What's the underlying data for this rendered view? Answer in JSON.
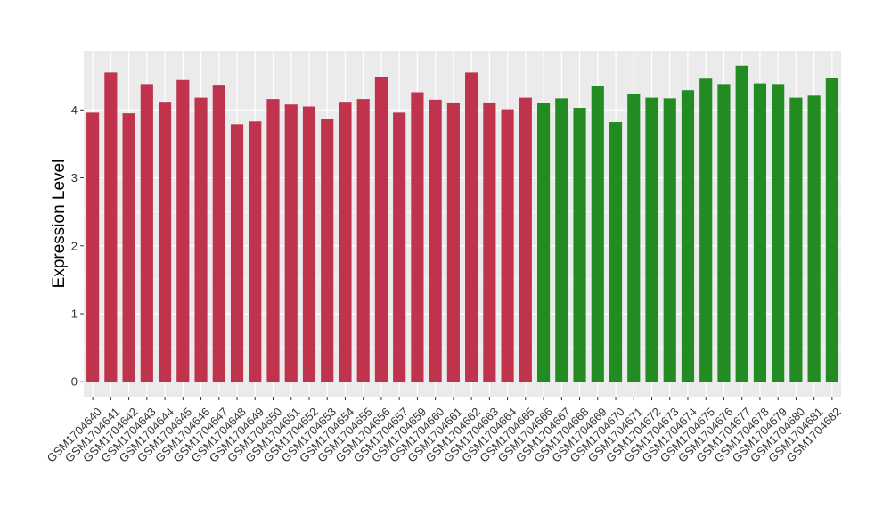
{
  "chart_data": {
    "type": "bar",
    "title": "",
    "xlabel": "",
    "ylabel": "Expression Level",
    "ylim": [
      -0.22,
      4.87
    ],
    "yticks": [
      0,
      1,
      2,
      3,
      4
    ],
    "grid": true,
    "legend": "none",
    "categories": [
      "GSM1704640",
      "GSM1704641",
      "GSM1704642",
      "GSM1704643",
      "GSM1704644",
      "GSM1704645",
      "GSM1704646",
      "GSM1704647",
      "GSM1704648",
      "GSM1704649",
      "GSM1704650",
      "GSM1704651",
      "GSM1704652",
      "GSM1704653",
      "GSM1704654",
      "GSM1704655",
      "GSM1704656",
      "GSM1704657",
      "GSM1704659",
      "GSM1704660",
      "GSM1704661",
      "GSM1704662",
      "GSM1704663",
      "GSM1704664",
      "GSM1704665",
      "GSM1704666",
      "GSM1704667",
      "GSM1704668",
      "GSM1704669",
      "GSM1704670",
      "GSM1704671",
      "GSM1704672",
      "GSM1704673",
      "GSM1704674",
      "GSM1704675",
      "GSM1704676",
      "GSM1704677",
      "GSM1704678",
      "GSM1704679",
      "GSM1704680",
      "GSM1704681",
      "GSM1704682"
    ],
    "values": [
      3.96,
      4.55,
      3.95,
      4.38,
      4.12,
      4.44,
      4.18,
      4.37,
      3.79,
      3.83,
      4.16,
      4.08,
      4.05,
      3.87,
      4.12,
      4.16,
      4.49,
      3.96,
      4.26,
      4.15,
      4.11,
      4.55,
      4.11,
      4.01,
      4.18,
      4.1,
      4.17,
      4.03,
      4.35,
      3.82,
      4.23,
      4.18,
      4.17,
      4.29,
      4.46,
      4.38,
      4.65,
      4.39,
      4.38,
      4.18,
      4.21,
      4.47
    ],
    "groups": [
      "group1",
      "group1",
      "group1",
      "group1",
      "group1",
      "group1",
      "group1",
      "group1",
      "group1",
      "group1",
      "group1",
      "group1",
      "group1",
      "group1",
      "group1",
      "group1",
      "group1",
      "group1",
      "group1",
      "group1",
      "group1",
      "group1",
      "group1",
      "group1",
      "group1",
      "group2",
      "group2",
      "group2",
      "group2",
      "group2",
      "group2",
      "group2",
      "group2",
      "group2",
      "group2",
      "group2",
      "group2",
      "group2",
      "group2",
      "group2",
      "group2",
      "group2"
    ],
    "colors": {
      "group1": "#c0334d",
      "group2": "#228b22",
      "panel": "#ebebeb",
      "grid": "#ffffff"
    }
  }
}
